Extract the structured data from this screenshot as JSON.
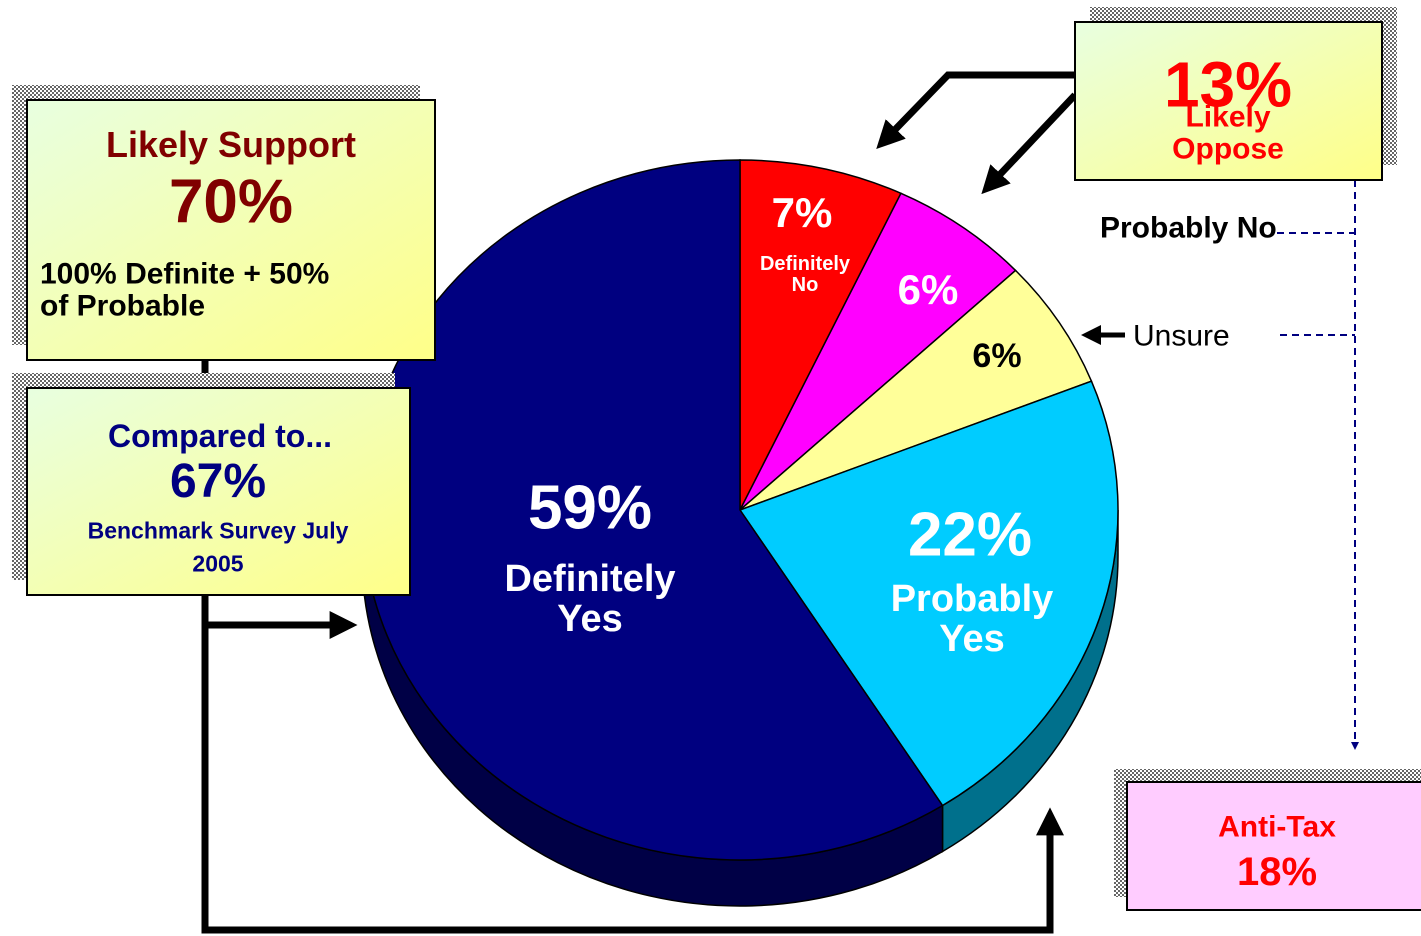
{
  "chart_data": {
    "type": "pie",
    "categories": [
      "Definitely No",
      "Probably No",
      "Unsure",
      "Probably Yes",
      "Definitely Yes"
    ],
    "values": [
      7,
      6,
      6,
      22,
      59
    ],
    "value_labels": [
      "7%",
      "6%",
      "6%",
      "22%",
      "59%"
    ],
    "colors": [
      "#ff0000",
      "#ff00ff",
      "#ffff99",
      "#00ccff",
      "#000080"
    ],
    "annotations": {
      "support": {
        "title": "Likely Support",
        "value": "70%",
        "note": "100% Definite + 50% of Probable"
      },
      "compare": {
        "title": "Compared to...",
        "value": "67%",
        "note": "Benchmark Survey July 2005"
      },
      "oppose": {
        "value": "13%",
        "title": "Likely Oppose"
      },
      "antitax": {
        "title": "Anti-Tax",
        "value": "18%"
      }
    }
  }
}
